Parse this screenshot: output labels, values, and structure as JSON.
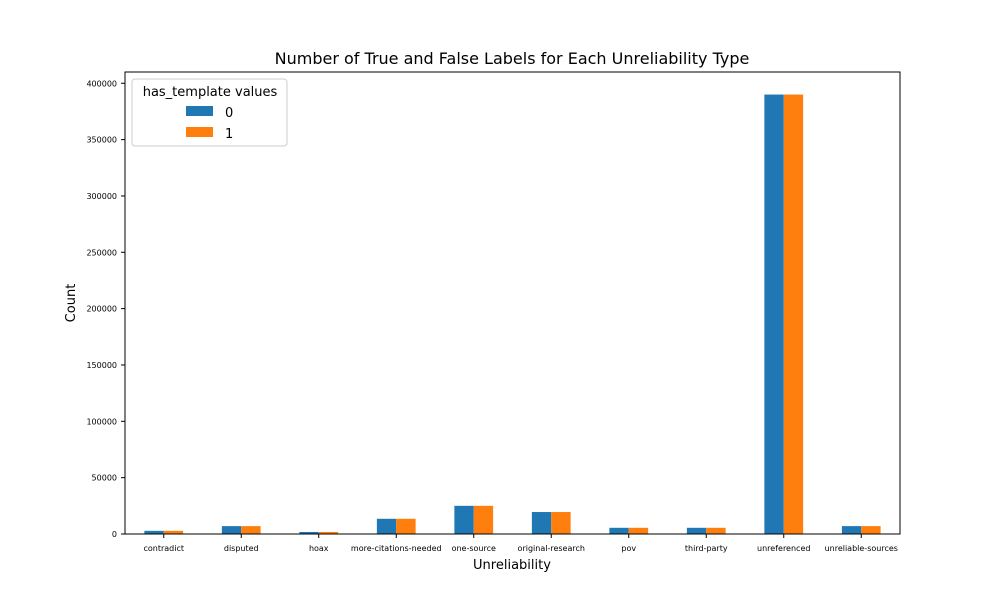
{
  "chart_data": {
    "type": "bar",
    "title": "Number of True and False Labels for Each Unreliability Type",
    "xlabel": "Unreliability",
    "ylabel": "Count",
    "categories": [
      "contradict",
      "disputed",
      "hoax",
      "more-citations-needed",
      "one-source",
      "original-research",
      "pov",
      "third-party",
      "unreferenced",
      "unreliable-sources"
    ],
    "series": [
      {
        "name": "0",
        "color": "#1f77b4",
        "values": [
          2800,
          7000,
          1800,
          13500,
          25000,
          19500,
          5500,
          5500,
          390000,
          7000
        ]
      },
      {
        "name": "1",
        "color": "#ff7f0e",
        "values": [
          2800,
          7000,
          1800,
          13500,
          25000,
          19500,
          5500,
          5500,
          390000,
          7000
        ]
      }
    ],
    "ylim": [
      0,
      410000
    ],
    "yticks": [
      0,
      50000,
      100000,
      150000,
      200000,
      250000,
      300000,
      350000,
      400000
    ],
    "legend": {
      "title": "has_template values",
      "placement": "top-left"
    },
    "grid": false
  }
}
